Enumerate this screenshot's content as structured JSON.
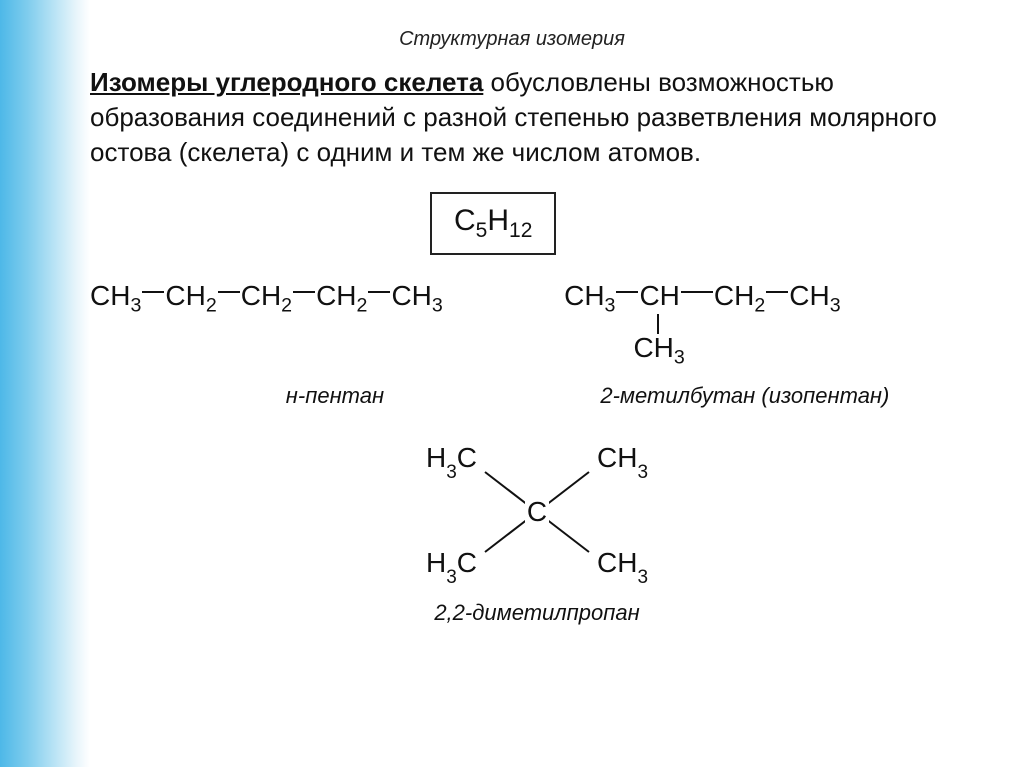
{
  "title": "Структурная изомерия",
  "paragraph": {
    "bold": "Изомеры углеродного скелета",
    "rest": " обусловлены возможностью образования соединений с разной степенью разветвления молярного остова (скелета) с одним и тем же числом атомов."
  },
  "formula_html": "C<sub>5</sub>H<sub>12</sub>",
  "npentane": {
    "groups": [
      "CH<sub>3</sub>",
      "CH<sub>2</sub>",
      "CH<sub>2</sub>",
      "CH<sub>2</sub>",
      "CH<sub>3</sub>"
    ],
    "label": "н-пентан"
  },
  "isopentane": {
    "groups": [
      "CH<sub>3</sub>",
      "CH",
      "CH<sub>2</sub>",
      "CH<sub>3</sub>"
    ],
    "branch": "CH<sub>3</sub>",
    "label": "2-метилбутан (изопентан)"
  },
  "neopentane": {
    "center": "C",
    "arms": [
      "H<sub>3</sub>C",
      "CH<sub>3</sub>",
      "H<sub>3</sub>C",
      "CH<sub>3</sub>"
    ],
    "label": "2,2-диметилпропан"
  },
  "colors": {
    "background": "#ffffff",
    "text": "#111111",
    "border": "#222222",
    "gradient_start": "#4db8e8",
    "gradient_end": "#ffffff"
  },
  "fonts": {
    "title_size": 20,
    "body_size": 26,
    "formula_size": 30,
    "chem_size": 28,
    "label_size": 22
  }
}
